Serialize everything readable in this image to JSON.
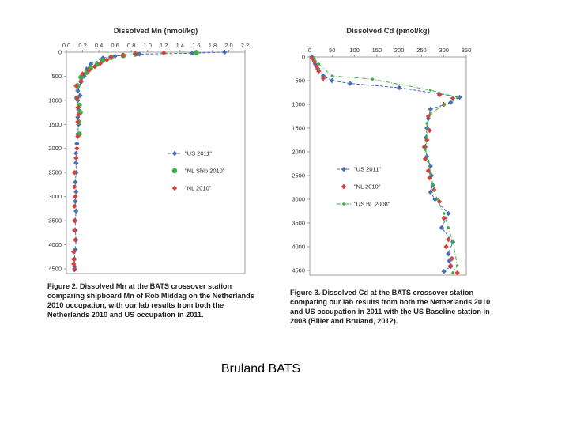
{
  "chart_data": [
    {
      "type": "scatter",
      "title": "Dissolved Mn (nmol/kg)",
      "x_axis": {
        "range": [
          0.0,
          2.2
        ],
        "ticks": [
          "0.0",
          "0.2",
          "0.4",
          "0.6",
          "0.8",
          "1.0",
          "1.2",
          "1.4",
          "1.6",
          "1.8",
          "2.0",
          "2.2"
        ],
        "position": "top"
      },
      "y_axis": {
        "range": [
          0,
          4600
        ],
        "reversed": true,
        "ticks": [
          "0",
          "500",
          "1000",
          "1500",
          "2000",
          "2500",
          "3000",
          "3500",
          "4000",
          "4500"
        ]
      },
      "legend_position": "right-middle",
      "series": [
        {
          "name": "\"US 2011\"",
          "color": "#4a6fb5",
          "marker": "diamond",
          "line": "dashed",
          "points": [
            [
              1.95,
              0
            ],
            [
              1.55,
              20
            ],
            [
              0.9,
              40
            ],
            [
              0.6,
              80
            ],
            [
              0.45,
              120
            ],
            [
              0.3,
              250
            ],
            [
              0.25,
              350
            ],
            [
              0.22,
              500
            ],
            [
              0.18,
              620
            ],
            [
              0.14,
              800
            ],
            [
              0.17,
              900
            ],
            [
              0.14,
              1000
            ],
            [
              0.15,
              1200
            ],
            [
              0.14,
              1350
            ],
            [
              0.15,
              1500
            ],
            [
              0.14,
              1700
            ],
            [
              0.13,
              1900
            ],
            [
              0.12,
              2100
            ],
            [
              0.12,
              2300
            ],
            [
              0.12,
              2500
            ],
            [
              0.11,
              2700
            ],
            [
              0.12,
              2900
            ],
            [
              0.11,
              3100
            ],
            [
              0.12,
              3300
            ],
            [
              0.11,
              3500
            ],
            [
              0.11,
              3700
            ],
            [
              0.12,
              3900
            ],
            [
              0.11,
              4100
            ],
            [
              0.1,
              4300
            ],
            [
              0.1,
              4450
            ],
            [
              0.1,
              4520
            ]
          ]
        },
        {
          "name": "\"NL Ship 2010\"",
          "color": "#3fae4a",
          "marker": "circle",
          "line": "none",
          "points": [
            [
              1.6,
              10
            ],
            [
              0.85,
              40
            ],
            [
              0.7,
              70
            ],
            [
              0.55,
              110
            ],
            [
              0.45,
              170
            ],
            [
              0.38,
              250
            ],
            [
              0.3,
              320
            ],
            [
              0.25,
              420
            ],
            [
              0.18,
              520
            ],
            [
              0.14,
              700
            ],
            [
              0.13,
              950
            ],
            [
              0.16,
              1100
            ],
            [
              0.17,
              1250
            ],
            [
              0.15,
              1450
            ],
            [
              0.16,
              1700
            ]
          ]
        },
        {
          "name": "\"NL 2010\"",
          "color": "#d9403a",
          "marker": "diamond",
          "line": "none",
          "points": [
            [
              1.2,
              15
            ],
            [
              0.85,
              30
            ],
            [
              0.7,
              60
            ],
            [
              0.55,
              100
            ],
            [
              0.5,
              160
            ],
            [
              0.42,
              230
            ],
            [
              0.35,
              300
            ],
            [
              0.28,
              380
            ],
            [
              0.2,
              450
            ],
            [
              0.18,
              600
            ],
            [
              0.12,
              700
            ],
            [
              0.13,
              950
            ],
            [
              0.14,
              1150
            ],
            [
              0.15,
              1300
            ],
            [
              0.14,
              1450
            ],
            [
              0.14,
              1750
            ],
            [
              0.13,
              2000
            ],
            [
              0.12,
              2200
            ],
            [
              0.1,
              2500
            ],
            [
              0.1,
              2800
            ],
            [
              0.11,
              3000
            ],
            [
              0.1,
              3200
            ],
            [
              0.1,
              3500
            ],
            [
              0.1,
              3700
            ],
            [
              0.11,
              3900
            ],
            [
              0.09,
              4150
            ],
            [
              0.09,
              4300
            ],
            [
              0.09,
              4400
            ],
            [
              0.1,
              4500
            ]
          ]
        }
      ]
    },
    {
      "type": "scatter",
      "title": "Dissolved Cd (pmol/kg)",
      "x_axis": {
        "range": [
          0,
          350
        ],
        "ticks": [
          "0",
          "50",
          "100",
          "150",
          "200",
          "250",
          "300",
          "350"
        ],
        "position": "top"
      },
      "y_axis": {
        "range": [
          0,
          4600
        ],
        "reversed": true,
        "ticks": [
          "0",
          "500",
          "1000",
          "1500",
          "2000",
          "2500",
          "3000",
          "3500",
          "4000",
          "4500"
        ]
      },
      "legend_position": "left-middle",
      "series": [
        {
          "name": "\"US 2011\"",
          "color": "#4a6fb5",
          "marker": "diamond",
          "line": "dashed",
          "points": [
            [
              5,
              0
            ],
            [
              8,
              50
            ],
            [
              12,
              150
            ],
            [
              18,
              250
            ],
            [
              30,
              400
            ],
            [
              50,
              500
            ],
            [
              90,
              560
            ],
            [
              200,
              650
            ],
            [
              290,
              780
            ],
            [
              335,
              850
            ],
            [
              315,
              960
            ],
            [
              270,
              1100
            ],
            [
              265,
              1300
            ],
            [
              262,
              1500
            ],
            [
              260,
              1700
            ],
            [
              258,
              1900
            ],
            [
              262,
              2100
            ],
            [
              270,
              2300
            ],
            [
              272,
              2500
            ],
            [
              275,
              2700
            ],
            [
              270,
              2850
            ],
            [
              280,
              3000
            ],
            [
              310,
              3300
            ],
            [
              295,
              3600
            ],
            [
              320,
              3900
            ],
            [
              310,
              4150
            ],
            [
              312,
              4300
            ],
            [
              315,
              4420
            ],
            [
              300,
              4520
            ]
          ]
        },
        {
          "name": "\"NL 2010\"",
          "color": "#d9403a",
          "marker": "diamond",
          "line": "none",
          "points": [
            [
              5,
              20
            ],
            [
              10,
              100
            ],
            [
              15,
              200
            ],
            [
              20,
              300
            ],
            [
              30,
              450
            ],
            [
              290,
              800
            ],
            [
              320,
              870
            ],
            [
              300,
              1000
            ],
            [
              265,
              1250
            ],
            [
              268,
              1550
            ],
            [
              262,
              1750
            ],
            [
              256,
              1900
            ],
            [
              258,
              2150
            ],
            [
              265,
              2400
            ],
            [
              268,
              2550
            ],
            [
              278,
              2800
            ],
            [
              290,
              3050
            ],
            [
              300,
              3400
            ],
            [
              310,
              3850
            ],
            [
              305,
              4000
            ],
            [
              318,
              4250
            ],
            [
              315,
              4400
            ],
            [
              330,
              4550
            ]
          ]
        },
        {
          "name": "\"US BL 2008\"",
          "color": "#3fae4a",
          "marker": "dot",
          "line": "dash-dot",
          "points": [
            [
              10,
              30
            ],
            [
              20,
              150
            ],
            [
              50,
              400
            ],
            [
              140,
              470
            ],
            [
              270,
              700
            ],
            [
              330,
              850
            ],
            [
              300,
              1000
            ],
            [
              270,
              1200
            ],
            [
              262,
              1400
            ],
            [
              262,
              1700
            ],
            [
              258,
              1950
            ],
            [
              265,
              2200
            ],
            [
              270,
              2450
            ],
            [
              275,
              2700
            ],
            [
              285,
              3000
            ],
            [
              300,
              3300
            ],
            [
              310,
              3600
            ],
            [
              320,
              3900
            ],
            [
              330,
              4400
            ],
            [
              320,
              4550
            ]
          ]
        }
      ]
    }
  ],
  "captions": {
    "mn": "Figure 2. Dissolved Mn at the BATS crossover station comparing shipboard Mn of Rob Middag on the Netherlands 2010 occupation, with our lab results from both the Netherlands 2010 and US occupation in 2011.",
    "cd": "Figure 3. Dissolved Cd at the BATS crossover station comparing our lab results from both the Netherlands 2010 and US occupation in 2011 with the US Baseline station in 2008 (Biller and Bruland, 2012)."
  },
  "footer": "Bruland BATS"
}
